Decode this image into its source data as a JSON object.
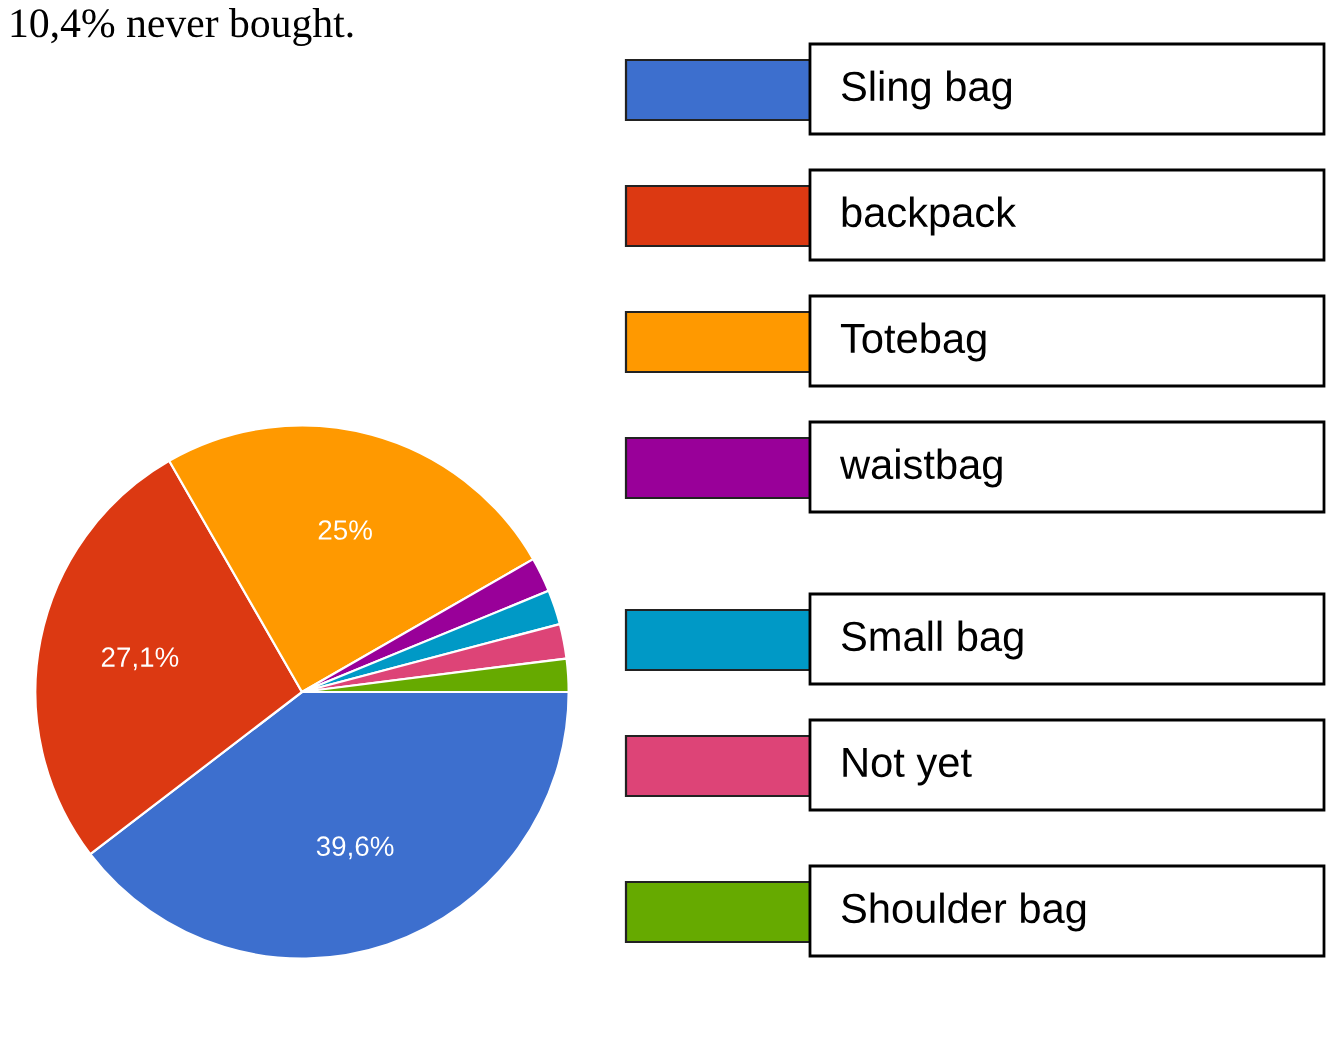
{
  "chart_data": {
    "type": "pie",
    "annotations": [
      "10,4% never bought."
    ],
    "categories": [
      "Sling bag",
      "backpack",
      "Totebag",
      "waistbag",
      "Small bag",
      "Not yet",
      "Shoulder bag"
    ],
    "values": [
      39.6,
      27.1,
      25,
      2.1,
      2.1,
      2.1,
      2.0
    ],
    "value_labels": [
      "39,6%",
      "27,1%",
      "25%",
      null,
      null,
      null,
      null
    ],
    "colors": [
      "#3d6fce",
      "#dc3912",
      "#ff9900",
      "#990099",
      "#0099c6",
      "#dd4477",
      "#66aa00"
    ],
    "legend": "right"
  }
}
